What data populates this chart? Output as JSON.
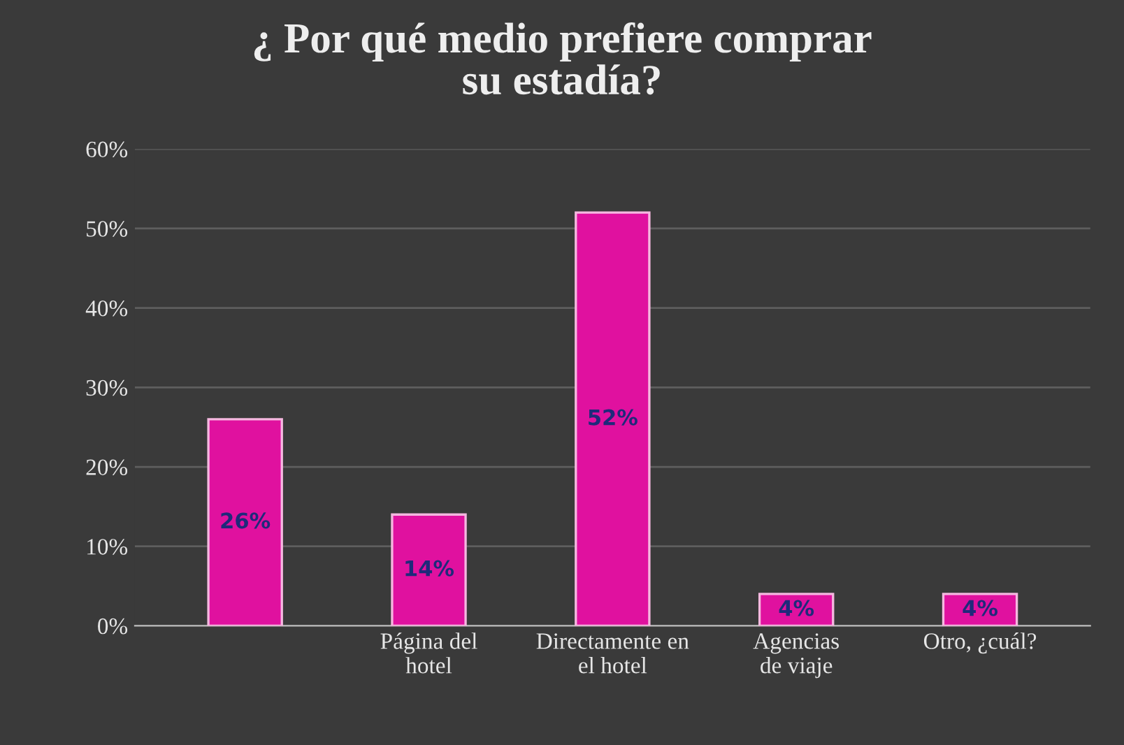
{
  "chart_data": {
    "type": "bar",
    "title": "¿ Por qué medio prefiere comprar\nsu estadía?",
    "categories": [
      null,
      "Página del\nhotel",
      "Directamente en\nel hotel",
      "Agencias\nde viaje",
      "Otro, ¿cuál?"
    ],
    "values": [
      26,
      14,
      52,
      4,
      4
    ],
    "color": "#e0119f",
    "value_labels": [
      "26%",
      "14%",
      "52%",
      "4%",
      "4%"
    ],
    "ylim": [
      0,
      60
    ],
    "yticks": [
      {
        "value": 0,
        "label": "0%"
      },
      {
        "value": 10,
        "label": "10%"
      },
      {
        "value": 20,
        "label": "20%"
      },
      {
        "value": 30,
        "label": "30%"
      },
      {
        "value": 40,
        "label": "40%"
      },
      {
        "value": 50,
        "label": "50%"
      },
      {
        "value": 60,
        "label": "60%"
      }
    ],
    "grid": "y",
    "legend": false
  }
}
